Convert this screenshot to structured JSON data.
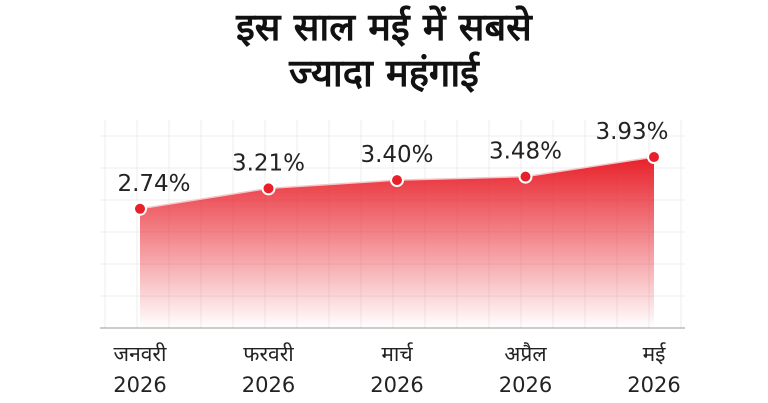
{
  "chart_data": {
    "type": "area",
    "title": "इस साल मई में सबसे\nज्यादा महंगाई",
    "categories": [
      "जनवरी\n2026",
      "फरवरी\n2026",
      "मार्च\n2026",
      "अप्रैल\n2026",
      "मई\n2026"
    ],
    "values": [
      2.74,
      3.21,
      3.4,
      3.48,
      3.93
    ],
    "value_labels": [
      "2.74%",
      "3.21%",
      "3.40%",
      "3.48%",
      "3.93%"
    ],
    "color": "#e8202a"
  }
}
